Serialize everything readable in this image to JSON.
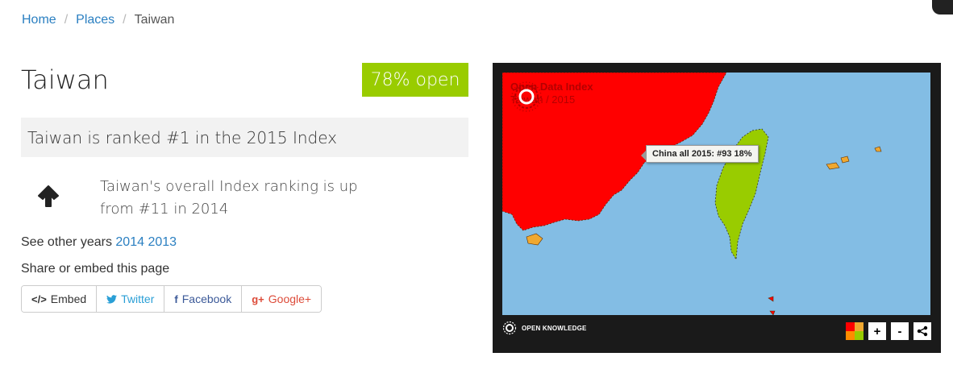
{
  "breadcrumb": {
    "home": "Home",
    "places": "Places",
    "current": "Taiwan",
    "separator": "/"
  },
  "place": {
    "name": "Taiwan",
    "score": "78% open",
    "score_color": "#99cc00"
  },
  "rank": {
    "headline": "Taiwan is ranked #1 in the 2015 Index"
  },
  "change": {
    "icon": "arrow-up-icon",
    "text": "Taiwan's overall Index ranking is up from #11 in 2014"
  },
  "other_years": {
    "label": "See other years",
    "years": [
      "2014",
      "2013"
    ]
  },
  "share": {
    "heading": "Share or embed this page",
    "buttons": [
      {
        "icon": "</>",
        "label": "Embed"
      },
      {
        "icon": "🐦",
        "label": "Twitter"
      },
      {
        "icon": "f",
        "label": "Facebook"
      },
      {
        "icon": "g+",
        "label": "Google+"
      }
    ]
  },
  "map": {
    "title": "Open Data Index",
    "subtitle": "Taiwan / 2015",
    "tooltip": "China all 2015: #93 18%",
    "footer_brand": "OPEN KNOWLEDGE",
    "controls": {
      "zoom_in": "+",
      "zoom_out": "-",
      "share_icon": "share-icon",
      "legend_icon": "legend-icon"
    },
    "colors": {
      "sea": "#83bde4",
      "china": "#ff0000",
      "taiwan": "#99cc00",
      "islands": "#f0a830",
      "legend": [
        "#ff0000",
        "#f0a830",
        "#ff8c00",
        "#99cc00"
      ]
    }
  }
}
